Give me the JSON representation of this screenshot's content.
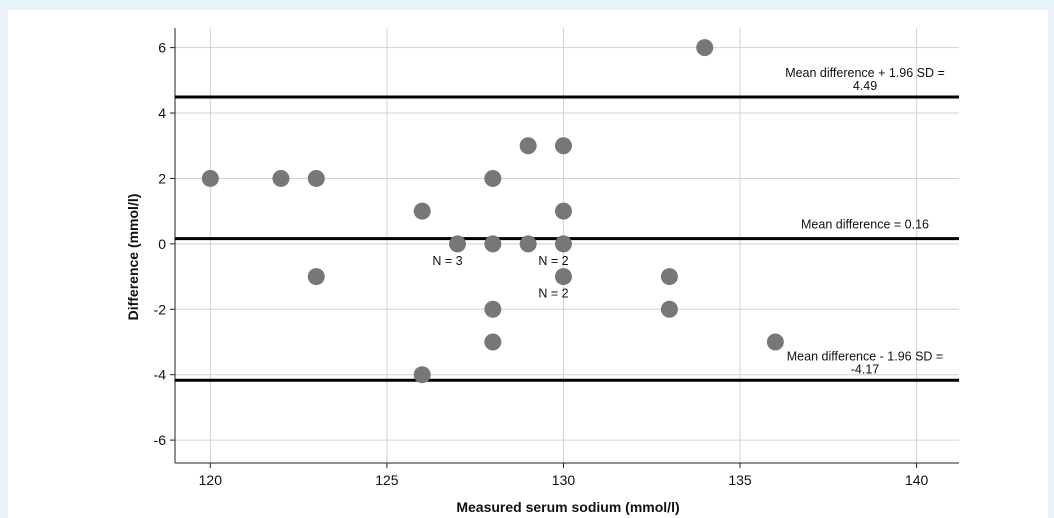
{
  "chart_data": {
    "type": "scatter",
    "title": "",
    "xlabel": "Measured serum sodium (mmol/l)",
    "ylabel": "Difference (mmol/l)",
    "xlim": [
      119,
      141.2
    ],
    "ylim": [
      -6.7,
      6.6
    ],
    "x_ticks": [
      120,
      125,
      130,
      135,
      140
    ],
    "y_ticks": [
      6,
      4,
      2,
      0,
      -2,
      -4,
      -6
    ],
    "x_tick_labels": [
      "120",
      "125",
      "130",
      "135",
      "140"
    ],
    "y_tick_labels": [
      "6",
      "4",
      "2",
      "0",
      "-2",
      "-4",
      "-6"
    ],
    "grid": true,
    "point_color": "#777777",
    "line_color": "#000000",
    "points": [
      {
        "x": 120,
        "y": 2
      },
      {
        "x": 122,
        "y": 2
      },
      {
        "x": 123,
        "y": 2
      },
      {
        "x": 123,
        "y": -1
      },
      {
        "x": 126,
        "y": 1
      },
      {
        "x": 126,
        "y": -4
      },
      {
        "x": 127,
        "y": 0
      },
      {
        "x": 128,
        "y": 2
      },
      {
        "x": 128,
        "y": 0
      },
      {
        "x": 128,
        "y": -2
      },
      {
        "x": 128,
        "y": -3
      },
      {
        "x": 129,
        "y": 3
      },
      {
        "x": 129,
        "y": 0
      },
      {
        "x": 130,
        "y": 3
      },
      {
        "x": 130,
        "y": 1
      },
      {
        "x": 130,
        "y": 0
      },
      {
        "x": 130,
        "y": -1
      },
      {
        "x": 133,
        "y": -1
      },
      {
        "x": 133,
        "y": -2
      },
      {
        "x": 134,
        "y": 6
      },
      {
        "x": 136,
        "y": -3
      }
    ],
    "reference_lines": [
      {
        "y": 4.49,
        "label_line1": "Mean difference + 1.96 SD =",
        "label_line2": "4.49"
      },
      {
        "y": 0.16,
        "label_line1": "Mean difference = 0.16",
        "label_line2": ""
      },
      {
        "y": -4.17,
        "label_line1": "Mean difference - 1.96 SD =",
        "label_line2": "-4.17"
      }
    ],
    "point_annotations": [
      {
        "x": 127,
        "y": 0,
        "text": "N = 3"
      },
      {
        "x": 130,
        "y": 0,
        "text": "N = 2"
      },
      {
        "x": 130,
        "y": -1,
        "text": "N = 2"
      }
    ]
  }
}
